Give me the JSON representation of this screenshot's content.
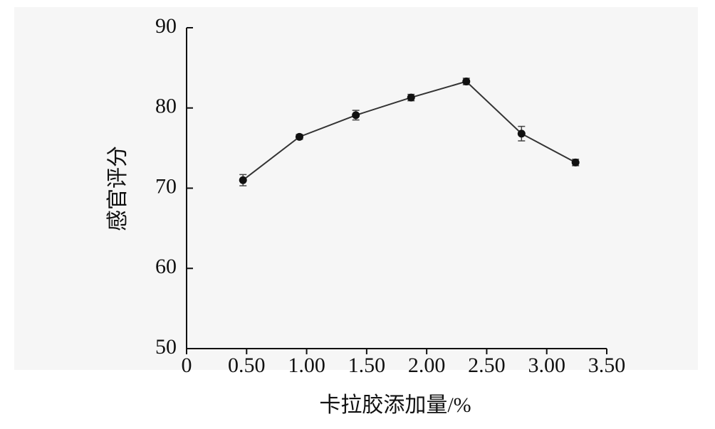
{
  "chart_data": {
    "type": "line",
    "x_label": "卡拉胶添加量/%",
    "y_label": "感官评分",
    "x": [
      0.47,
      0.94,
      1.41,
      1.87,
      2.33,
      2.79,
      3.24
    ],
    "series": [
      {
        "color": "#111111",
        "values": [
          71.0,
          76.4,
          79.1,
          81.3,
          83.3,
          76.8,
          73.2
        ],
        "errors": [
          0.7,
          0.3,
          0.6,
          0.4,
          0.4,
          0.9,
          0.4
        ]
      }
    ],
    "xlim": [
      0,
      3.5
    ],
    "ylim": [
      50,
      90
    ],
    "xticks": [
      0,
      {
        "value": 0.5,
        "label": "0.50"
      },
      {
        "value": 1,
        "label": "1.00"
      },
      {
        "value": 1.5,
        "label": "1.50"
      },
      {
        "value": 2,
        "label": "2.00"
      },
      {
        "value": 2.5,
        "label": "2.50"
      },
      {
        "value": 3,
        "label": "3.00"
      },
      {
        "value": 3.5,
        "label": "3.50"
      }
    ],
    "yticks": [
      50,
      60,
      70,
      80,
      90
    ]
  }
}
